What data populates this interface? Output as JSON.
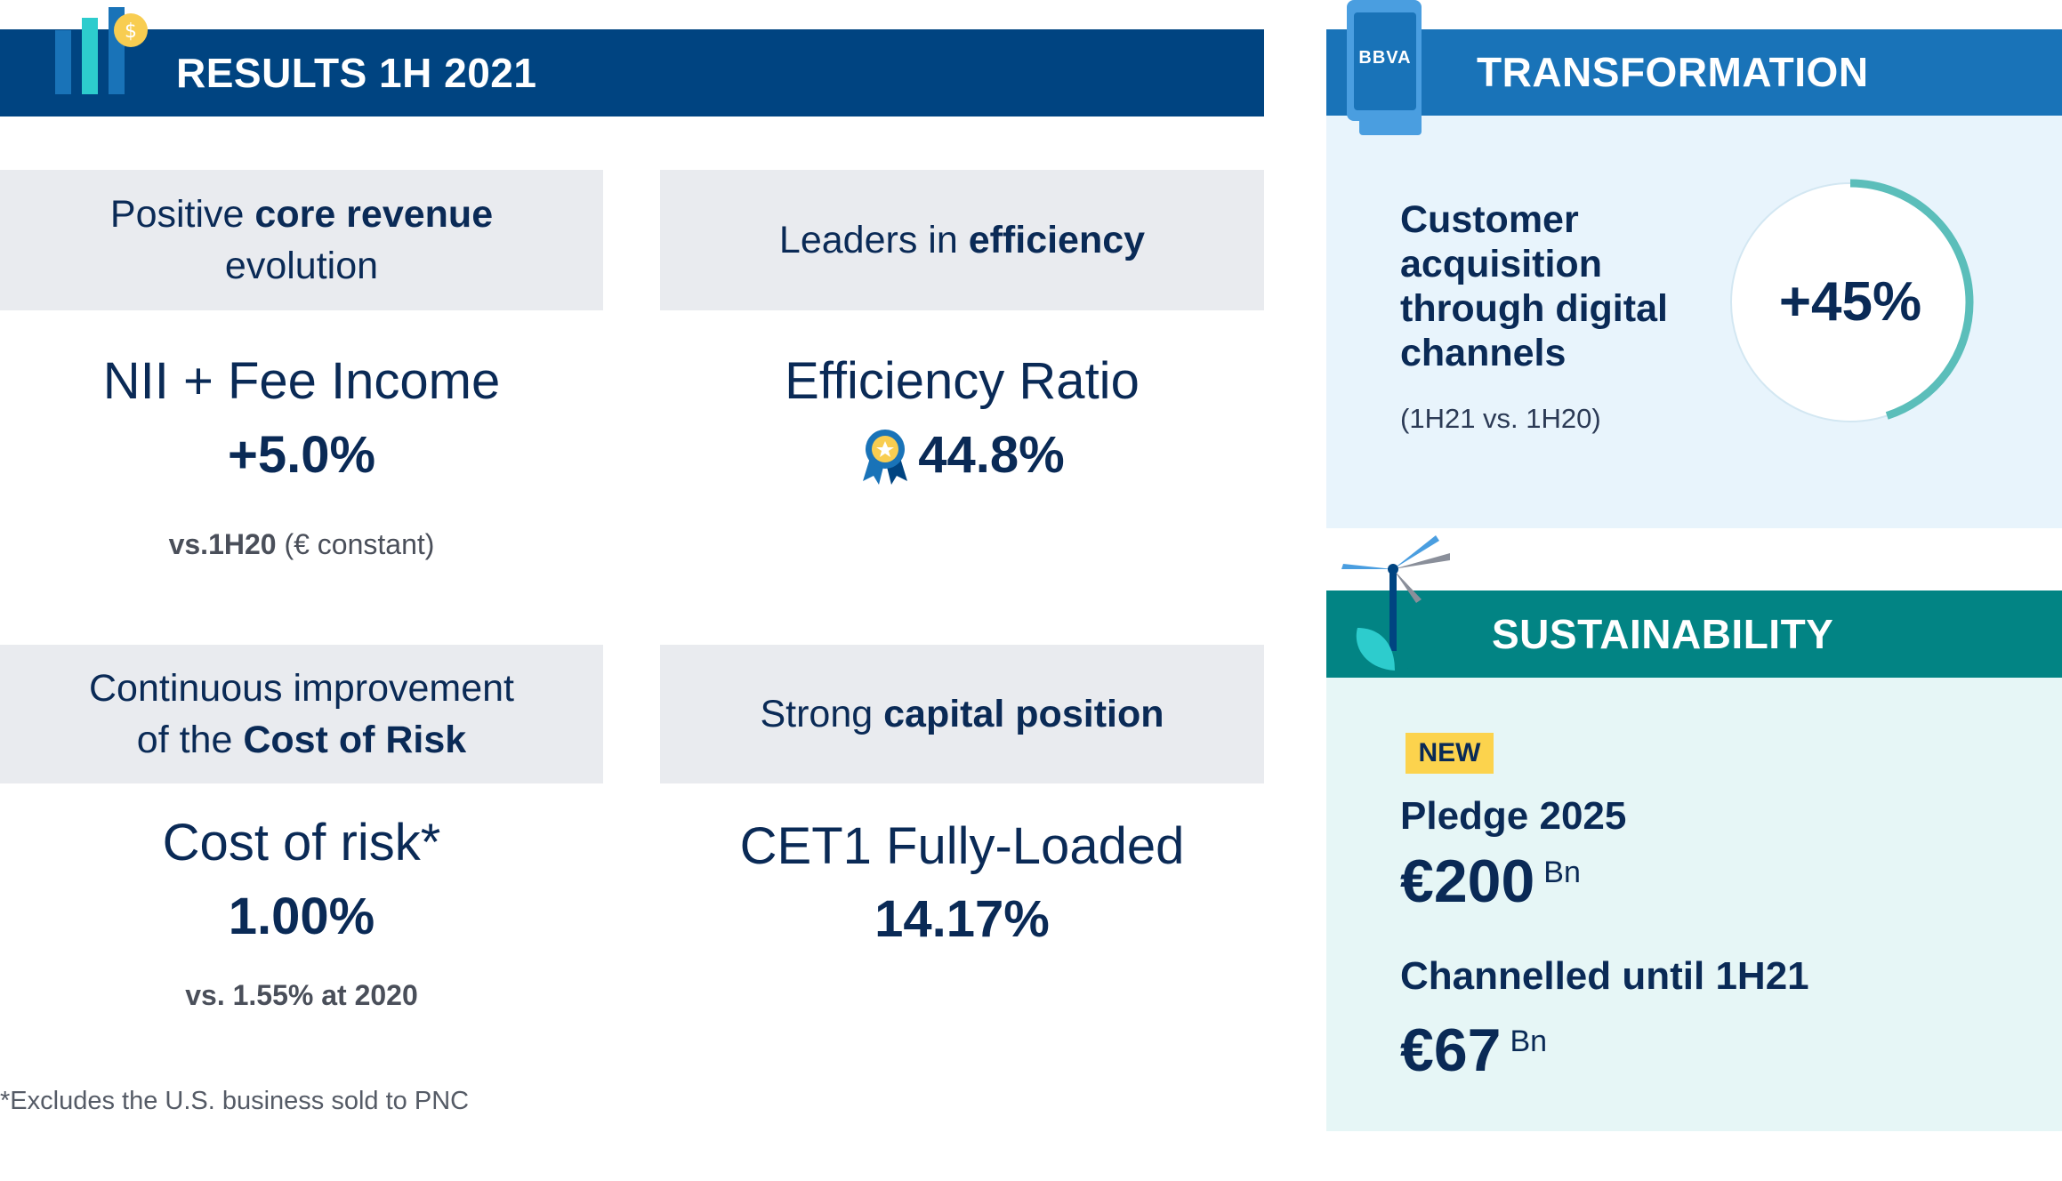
{
  "results": {
    "title": "RESULTS 1H 2021",
    "cards": [
      {
        "header_pre": "Positive ",
        "header_bold": "core revenue",
        "header_line2": "evolution",
        "metric": "NII + Fee Income",
        "value": "+5.0%",
        "note_bold": "vs.1H20",
        "note_rest": " (€ constant)"
      },
      {
        "header_pre": "Leaders in ",
        "header_bold": "efficiency",
        "metric": "Efficiency Ratio",
        "value": "44.8%"
      },
      {
        "header_line1": "Continuous improvement",
        "header_pre": "of the ",
        "header_bold": "Cost of Risk",
        "metric": "Cost of risk*",
        "value": "1.00%",
        "note_bold": "vs. 1.55% at 2020"
      },
      {
        "header_pre": "Strong ",
        "header_bold": "capital position",
        "metric": "CET1 Fully-Loaded",
        "value": "14.17%"
      }
    ],
    "footnote": "*Excludes the U.S. business sold to PNC"
  },
  "transformation": {
    "title": "TRANSFORMATION",
    "phone_logo": "BBVA",
    "lines": [
      "Customer",
      "acquisition",
      "through digital",
      "channels"
    ],
    "note": "(1H21 vs. 1H20)",
    "value": "+45%",
    "progress_fraction": 0.45
  },
  "sustainability": {
    "title": "SUSTAINABILITY",
    "badge": "NEW",
    "pledge_label": "Pledge 2025",
    "pledge_value": "€200",
    "pledge_unit": "Bn",
    "channelled_label": "Channelled until 1H21",
    "channelled_value": "€67",
    "channelled_unit": "Bn"
  },
  "colors": {
    "navy": "#004481",
    "blue": "#1973b8",
    "teal": "#028484",
    "ring": "#5bbeba",
    "gold": "#f8cd51",
    "text": "#0a2a56"
  },
  "icons": [
    "bar-chart-coin-icon",
    "phone-icon",
    "medal-icon",
    "wind-turbine-icon"
  ]
}
